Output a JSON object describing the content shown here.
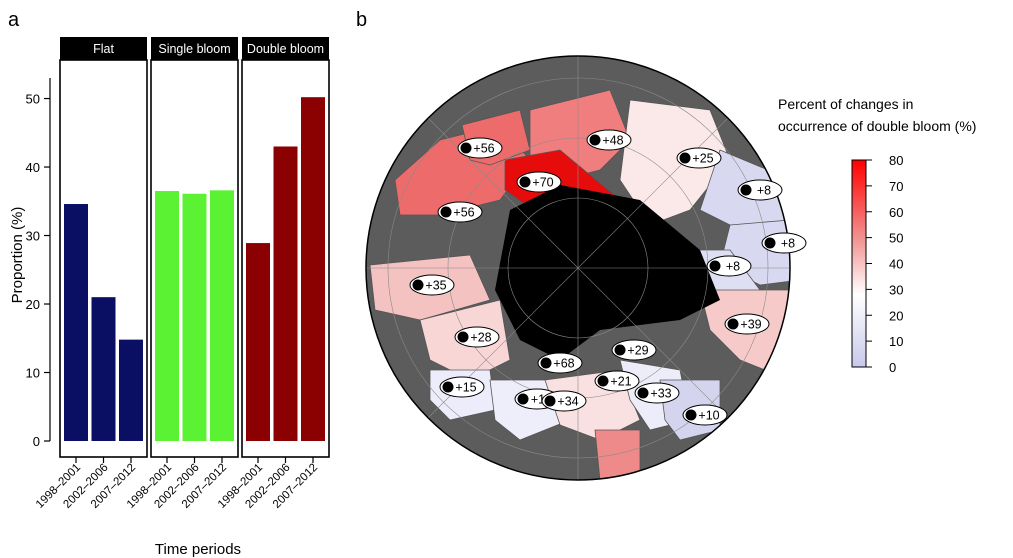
{
  "panel_a_letter": "a",
  "panel_b_letter": "b",
  "chart_data": [
    {
      "type": "bar",
      "facets": [
        "Flat",
        "Single bloom",
        "Double bloom"
      ],
      "categories": [
        "1998–2001",
        "2002–2006",
        "2007–2012"
      ],
      "series": [
        {
          "facet": "Flat",
          "values": [
            34.6,
            21.0,
            14.8
          ],
          "color": "#0b0f63"
        },
        {
          "facet": "Single bloom",
          "values": [
            36.5,
            36.1,
            36.6
          ],
          "color": "#5cf234"
        },
        {
          "facet": "Double bloom",
          "values": [
            28.9,
            43.0,
            50.2
          ],
          "color": "#8b0000"
        }
      ],
      "xlabel": "Time periods",
      "ylabel": "Proportion (%)",
      "ylim": [
        0,
        53
      ],
      "yticks": [
        0,
        10,
        20,
        30,
        40,
        50
      ],
      "grid": false
    },
    {
      "type": "map",
      "projection": "north polar stereographic",
      "legend_title_line1": "Percent of changes in",
      "legend_title_line2": "occurrence of double bloom (%)",
      "colorbar_ticks": [
        0,
        10,
        20,
        30,
        40,
        50,
        60,
        70,
        80
      ],
      "colorbar_range": [
        0,
        80
      ],
      "colorbar_colors": [
        "#c8c8ec",
        "#ffffff",
        "#ff0000"
      ],
      "region_labels": [
        "+56",
        "+48",
        "+25",
        "+8",
        "+70",
        "+56",
        "+8",
        "+8",
        "+35",
        "+39",
        "+28",
        "+29",
        "+68",
        "+21",
        "+15",
        "+11",
        "+34",
        "+33",
        "+10"
      ]
    }
  ]
}
